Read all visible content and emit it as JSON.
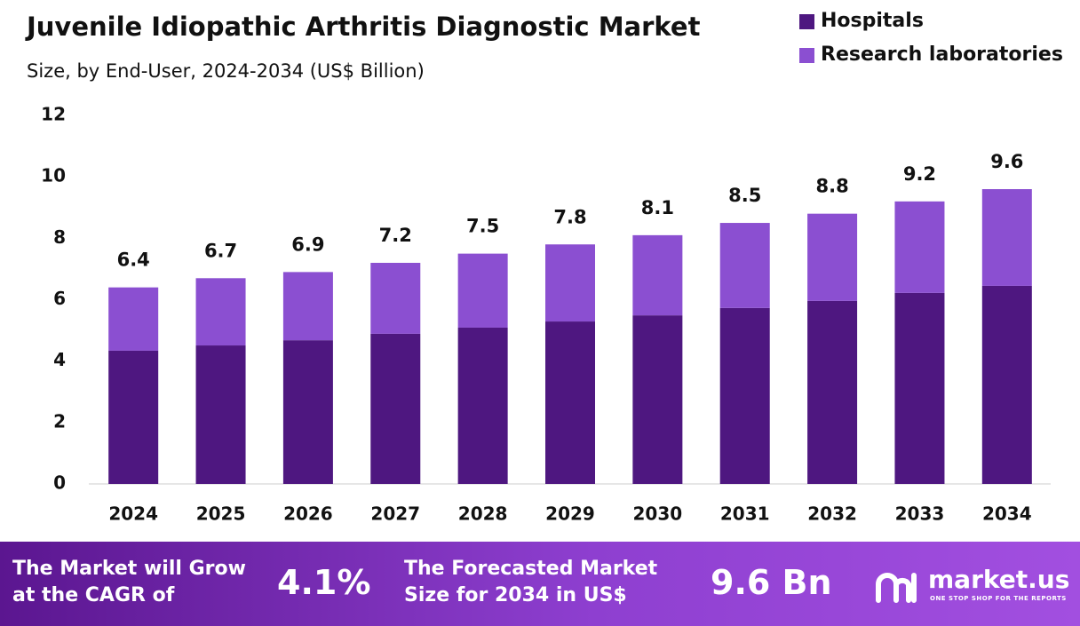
{
  "chart_data": {
    "type": "stacked_bar",
    "title": "Juvenile Idiopathic Arthritis Diagnostic Market",
    "subtitle": "Size, by End-User, 2024-2034 (US$ Billion)",
    "categories": [
      "2024",
      "2025",
      "2026",
      "2027",
      "2028",
      "2029",
      "2030",
      "2031",
      "2032",
      "2033",
      "2034"
    ],
    "series": [
      {
        "name": "Hospitals",
        "color": "#4e1780",
        "values": [
          4.34,
          4.51,
          4.68,
          4.89,
          5.09,
          5.29,
          5.49,
          5.73,
          5.96,
          6.22,
          6.45
        ]
      },
      {
        "name": "Research laboratories",
        "color": "#8b4fd1",
        "values": [
          2.06,
          2.19,
          2.22,
          2.31,
          2.41,
          2.51,
          2.61,
          2.77,
          2.84,
          2.98,
          3.15
        ]
      }
    ],
    "totals": [
      6.4,
      6.7,
      6.9,
      7.2,
      7.5,
      7.8,
      8.1,
      8.5,
      8.8,
      9.2,
      9.6
    ],
    "ylim": [
      0,
      12
    ],
    "yticks": [
      0,
      2,
      4,
      6,
      8,
      10,
      12
    ],
    "grid": false,
    "legend": "top-right"
  },
  "footer": {
    "cagr_label": "The Market will Grow at the CAGR of",
    "cagr_value": "4.1%",
    "forecast_label": "The Forecasted Market Size for 2034 in US$",
    "forecast_value": "9.6 Bn",
    "brand": "market.us",
    "tagline": "ONE STOP SHOP FOR THE REPORTS"
  }
}
